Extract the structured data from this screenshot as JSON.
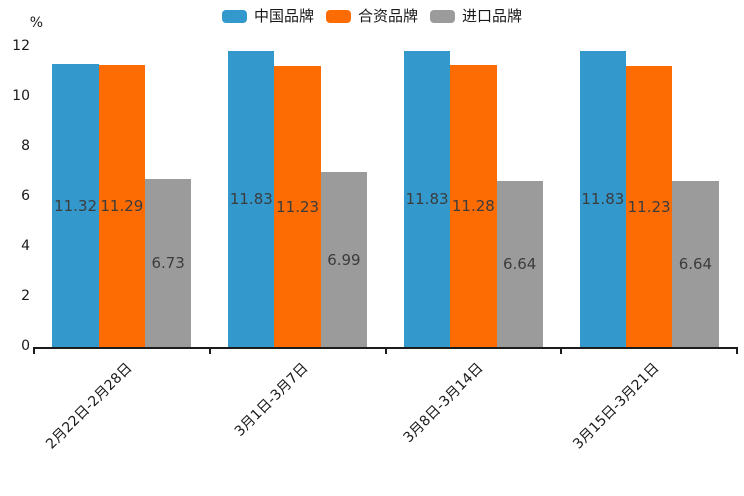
{
  "chart_data": {
    "type": "bar",
    "title": "",
    "ylabel": "%",
    "xlabel": "",
    "ylim": [
      0,
      12
    ],
    "yticks": [
      0,
      2,
      4,
      6,
      8,
      10,
      12
    ],
    "grid": false,
    "legend_position": "top-center",
    "value_labels": true,
    "categories": [
      "2月22日-2月28日",
      "3月1日-3月7日",
      "3月8日-3月14日",
      "3月15日-3月21日"
    ],
    "series": [
      {
        "name": "中国品牌",
        "color": "#3398CC",
        "values": [
          11.32,
          11.83,
          11.83,
          11.83
        ]
      },
      {
        "name": "合资品牌",
        "color": "#FC6C02",
        "values": [
          11.29,
          11.23,
          11.28,
          11.23
        ]
      },
      {
        "name": "进口品牌",
        "color": "#9B9B9B",
        "values": [
          6.73,
          6.99,
          6.64,
          6.64
        ]
      }
    ],
    "colors": {
      "axis": "#1c1c1c",
      "tick_text": "#1a1a1a",
      "value_label_text": "#3c3c3c",
      "background": "#ffffff"
    }
  }
}
